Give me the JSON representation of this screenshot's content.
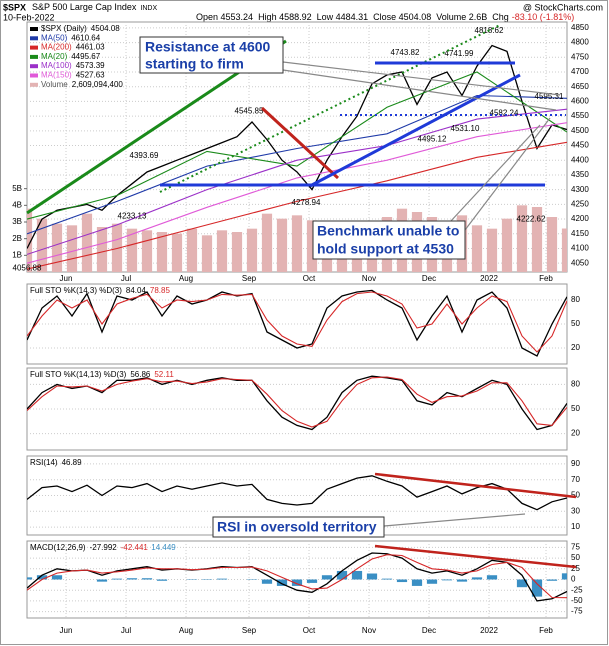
{
  "header": {
    "symbol": "$SPX",
    "name": "S&P 500 Large Cap Index",
    "exchange": "INDX",
    "date": "10-Feb-2022",
    "quote": [
      "Open 4553.24",
      "High 4588.92",
      "Low 4484.31",
      "Close 4504.08",
      "Volume 2.6B"
    ],
    "change_label": "Chg",
    "change": "-83.10 (-1.81%)",
    "source": "@ StockCharts.com"
  },
  "annotations": {
    "resistance": [
      "Resistance at 4600",
      "starting to firm"
    ],
    "benchmark": [
      "Benchmark unable to",
      "hold support at 4530"
    ],
    "rsi": "RSI in oversold territory"
  },
  "chart_data": [
    {
      "type": "line",
      "xlim": [
        0,
        180
      ],
      "xticks": [
        {
          "value": 13,
          "label": "Jun"
        },
        {
          "value": 33,
          "label": "Jul"
        },
        {
          "value": 53,
          "label": "Aug"
        },
        {
          "value": 74,
          "label": "Sep"
        },
        {
          "value": 94,
          "label": "Oct"
        },
        {
          "value": 114,
          "label": "Nov"
        },
        {
          "value": 134,
          "label": "Dec"
        },
        {
          "value": 154,
          "label": "2022"
        },
        {
          "value": 173,
          "label": "Feb"
        }
      ],
      "ylim": [
        4020,
        4870
      ],
      "yticks": [
        4050,
        4100,
        4150,
        4200,
        4250,
        4300,
        4350,
        4400,
        4450,
        4500,
        4550,
        4600,
        4650,
        4700,
        4750,
        4800,
        4850
      ],
      "y2lim": [
        0,
        15000000000
      ],
      "y2ticks": [
        {
          "value": 1000000000,
          "label": "1B"
        },
        {
          "value": 2000000000,
          "label": "2B"
        },
        {
          "value": 3000000000,
          "label": "3B"
        },
        {
          "value": 4000000000,
          "label": "4B"
        },
        {
          "value": 5000000000,
          "label": "5B"
        }
      ],
      "grid": true,
      "x": [
        0,
        5,
        10,
        15,
        20,
        25,
        30,
        35,
        40,
        45,
        50,
        55,
        60,
        65,
        70,
        75,
        80,
        85,
        90,
        95,
        100,
        105,
        110,
        115,
        120,
        125,
        130,
        135,
        140,
        145,
        150,
        155,
        160,
        165,
        170,
        175,
        180
      ],
      "series": [
        {
          "name": "$SPX (Daily)",
          "color": "#000000",
          "values": [
            4100,
            4200,
            4230,
            4240,
            4250,
            4230,
            4280,
            4320,
            4360,
            4380,
            4400,
            4420,
            4440,
            4460,
            4480,
            4530,
            4470,
            4400,
            4360,
            4300,
            4400,
            4480,
            4550,
            4660,
            4690,
            4700,
            4590,
            4680,
            4700,
            4620,
            4720,
            4790,
            4770,
            4600,
            4440,
            4520,
            4504.08
          ]
        },
        {
          "name": "MA(50)",
          "color": "#1f3aa8",
          "x": [
            0,
            30,
            60,
            90,
            120,
            150,
            180
          ],
          "values": [
            4150,
            4260,
            4380,
            4440,
            4490,
            4620,
            4610.64
          ]
        },
        {
          "name": "MA(200)",
          "color": "#d62728",
          "x": [
            0,
            30,
            60,
            90,
            120,
            150,
            180
          ],
          "values": [
            4030,
            4100,
            4180,
            4260,
            4330,
            4410,
            4461.03
          ]
        },
        {
          "name": "MA(20)",
          "color": "#1a8a1a",
          "x": [
            0,
            30,
            60,
            90,
            120,
            150,
            180
          ],
          "values": [
            4200,
            4280,
            4430,
            4380,
            4580,
            4700,
            4495.67
          ]
        },
        {
          "name": "MA(100)",
          "color": "#9b30c8",
          "x": [
            0,
            30,
            60,
            90,
            120,
            150,
            180
          ],
          "values": [
            4080,
            4180,
            4300,
            4400,
            4450,
            4540,
            4573.39
          ]
        },
        {
          "name": "MA(150)",
          "color": "#e05ad8",
          "x": [
            0,
            30,
            60,
            90,
            120,
            150,
            180
          ],
          "values": [
            4050,
            4130,
            4240,
            4340,
            4400,
            4480,
            4527.63
          ]
        },
        {
          "name": "Volume",
          "type": "bar",
          "axis": "y2",
          "color": "#e3b3b3",
          "values": [
            3800000000,
            3200000000,
            2900000000,
            2800000000,
            3500000000,
            2700000000,
            2900000000,
            2600000000,
            2500000000,
            2400000000,
            2300000000,
            2600000000,
            2200000000,
            2500000000,
            2400000000,
            2600000000,
            3500000000,
            3200000000,
            3400000000,
            3100000000,
            2900000000,
            2800000000,
            2700000000,
            2900000000,
            3300000000,
            3800000000,
            3600000000,
            3300000000,
            3000000000,
            3400000000,
            2800000000,
            2600000000,
            3200000000,
            4000000000,
            3900000000,
            3300000000,
            2609094400
          ],
          "value_labels": [
            null,
            null,
            null,
            null,
            null,
            null,
            null,
            null,
            null,
            null,
            null,
            null,
            null,
            null,
            null,
            null,
            null,
            null,
            null,
            null,
            null,
            null,
            null,
            null,
            null,
            null,
            null,
            null,
            null,
            null,
            null,
            null,
            null,
            null,
            null,
            null,
            "2,609,094,400"
          ]
        }
      ],
      "point_labels": [
        {
          "x": 0,
          "value": 4056.88
        },
        {
          "x": 35,
          "value": 4233.13
        },
        {
          "x": 39,
          "value": 4393.69
        },
        {
          "x": 74,
          "value": 4545.85
        },
        {
          "x": 93,
          "value": 4278.94
        },
        {
          "x": 126,
          "value": 4743.82
        },
        {
          "x": 135,
          "value": 4495.12
        },
        {
          "x": 144,
          "value": 4741.99
        },
        {
          "x": 146,
          "value": 4531.1,
          "label": "4531.10"
        },
        {
          "x": 154,
          "value": 4818.62
        },
        {
          "x": 159,
          "value": 4582.24
        },
        {
          "x": 168,
          "value": 4222.62
        },
        {
          "x": 174,
          "value": 4595.31
        }
      ]
    },
    {
      "type": "line",
      "title": "Full STO %K(14,3) %D(3)",
      "xlim": [
        0,
        180
      ],
      "ylim": [
        0,
        100
      ],
      "yticks": [
        20,
        50,
        80
      ],
      "grid": true,
      "x": [
        0,
        5,
        10,
        15,
        20,
        25,
        30,
        35,
        40,
        45,
        50,
        55,
        60,
        65,
        70,
        75,
        80,
        85,
        90,
        95,
        100,
        105,
        110,
        115,
        120,
        125,
        130,
        135,
        140,
        145,
        150,
        155,
        160,
        165,
        170,
        175,
        180
      ],
      "series": [
        {
          "color": "#000000",
          "values": [
            30,
            70,
            85,
            60,
            88,
            40,
            85,
            80,
            90,
            60,
            85,
            75,
            80,
            90,
            85,
            88,
            40,
            30,
            20,
            25,
            70,
            85,
            90,
            92,
            80,
            70,
            30,
            60,
            85,
            40,
            80,
            90,
            70,
            20,
            10,
            50,
            84.04
          ]
        },
        {
          "color": "#d62728",
          "values": [
            35,
            60,
            80,
            70,
            80,
            50,
            75,
            82,
            87,
            70,
            80,
            78,
            80,
            87,
            86,
            87,
            55,
            35,
            25,
            22,
            55,
            78,
            88,
            90,
            85,
            75,
            45,
            50,
            75,
            50,
            70,
            85,
            78,
            35,
            15,
            35,
            78.85
          ]
        }
      ]
    },
    {
      "type": "line",
      "title": "Full STO %K(14,13) %D(3)",
      "xlim": [
        0,
        180
      ],
      "ylim": [
        0,
        100
      ],
      "yticks": [
        20,
        50,
        80
      ],
      "grid": true,
      "x": [
        0,
        5,
        10,
        15,
        20,
        25,
        30,
        35,
        40,
        45,
        50,
        55,
        60,
        65,
        70,
        75,
        80,
        85,
        90,
        95,
        100,
        105,
        110,
        115,
        120,
        125,
        130,
        135,
        140,
        145,
        150,
        155,
        160,
        165,
        170,
        175,
        180
      ],
      "series": [
        {
          "color": "#000000",
          "values": [
            50,
            70,
            80,
            75,
            78,
            70,
            85,
            85,
            88,
            80,
            85,
            80,
            85,
            88,
            85,
            85,
            60,
            40,
            30,
            25,
            40,
            70,
            85,
            90,
            88,
            85,
            60,
            55,
            70,
            65,
            75,
            85,
            80,
            50,
            25,
            30,
            56.86
          ]
        },
        {
          "color": "#d62728",
          "values": [
            48,
            65,
            78,
            77,
            78,
            72,
            80,
            84,
            87,
            83,
            84,
            81,
            83,
            87,
            86,
            85,
            68,
            48,
            35,
            28,
            35,
            60,
            80,
            88,
            89,
            86,
            68,
            58,
            65,
            66,
            72,
            82,
            82,
            60,
            32,
            30,
            52.11
          ]
        }
      ]
    },
    {
      "type": "line",
      "title": "RSI(14)",
      "xlim": [
        0,
        180
      ],
      "ylim": [
        0,
        100
      ],
      "yticks": [
        10,
        30,
        50,
        70,
        90
      ],
      "grid": true,
      "x": [
        0,
        5,
        10,
        15,
        20,
        25,
        30,
        35,
        40,
        45,
        50,
        55,
        60,
        65,
        70,
        75,
        80,
        85,
        90,
        95,
        100,
        105,
        110,
        115,
        120,
        125,
        130,
        135,
        140,
        145,
        150,
        155,
        160,
        165,
        170,
        175,
        180
      ],
      "series": [
        {
          "color": "#000000",
          "values": [
            45,
            60,
            62,
            55,
            63,
            50,
            62,
            60,
            65,
            55,
            62,
            58,
            62,
            66,
            62,
            64,
            45,
            40,
            38,
            40,
            58,
            65,
            72,
            75,
            68,
            62,
            48,
            55,
            62,
            52,
            60,
            65,
            58,
            40,
            32,
            42,
            46.89
          ]
        }
      ]
    },
    {
      "type": "line",
      "title": "MACD(12,26,9)",
      "xlim": [
        0,
        180
      ],
      "xticks": [
        {
          "value": 13,
          "label": "Jun"
        },
        {
          "value": 33,
          "label": "Jul"
        },
        {
          "value": 53,
          "label": "Aug"
        },
        {
          "value": 74,
          "label": "Sep"
        },
        {
          "value": 94,
          "label": "Oct"
        },
        {
          "value": 114,
          "label": "Nov"
        },
        {
          "value": 134,
          "label": "Dec"
        },
        {
          "value": 154,
          "label": "2022"
        },
        {
          "value": 173,
          "label": "Feb"
        }
      ],
      "ylim": [
        -90,
        90
      ],
      "yticks": [
        -75,
        -50,
        -25,
        0,
        25,
        50,
        75
      ],
      "grid": true,
      "x": [
        0,
        5,
        10,
        15,
        20,
        25,
        30,
        35,
        40,
        45,
        50,
        55,
        60,
        65,
        70,
        75,
        80,
        85,
        90,
        95,
        100,
        105,
        110,
        115,
        120,
        125,
        130,
        135,
        140,
        145,
        150,
        155,
        160,
        165,
        170,
        175,
        180
      ],
      "series": [
        {
          "color": "#000000",
          "values": [
            -20,
            10,
            25,
            20,
            22,
            10,
            20,
            25,
            30,
            22,
            25,
            22,
            25,
            30,
            28,
            30,
            10,
            -10,
            -25,
            -30,
            -10,
            20,
            45,
            62,
            60,
            50,
            25,
            15,
            20,
            10,
            25,
            45,
            40,
            10,
            -50,
            -45,
            -27.992
          ]
        },
        {
          "color": "#d62728",
          "values": [
            -25,
            0,
            15,
            20,
            22,
            15,
            18,
            22,
            27,
            25,
            25,
            23,
            24,
            28,
            28,
            29,
            20,
            5,
            -10,
            -22,
            -20,
            0,
            25,
            48,
            58,
            56,
            40,
            25,
            22,
            15,
            20,
            35,
            40,
            28,
            -10,
            -42,
            -42.441
          ]
        },
        {
          "type": "bar",
          "color": "#3a8fc4",
          "values": [
            5,
            10,
            10,
            0,
            0,
            -5,
            2,
            3,
            3,
            -3,
            0,
            -1,
            1,
            2,
            0,
            1,
            -10,
            -15,
            -15,
            -8,
            10,
            20,
            20,
            14,
            2,
            -6,
            -15,
            -10,
            -2,
            -5,
            5,
            10,
            0,
            -18,
            -40,
            -3,
            14.449
          ]
        }
      ]
    }
  ]
}
